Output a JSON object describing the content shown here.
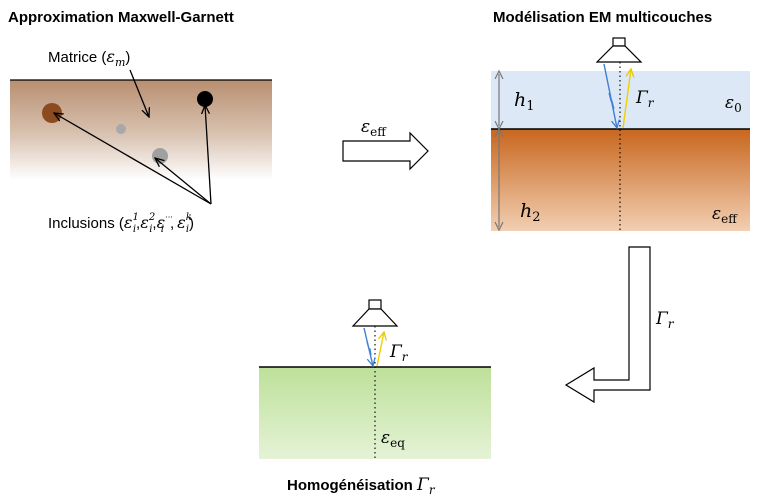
{
  "panels": {
    "maxwell_garnett": {
      "title": "Approximation Maxwell-Garnett",
      "matrix_label": "Matrice (",
      "matrix_symbol": "ε",
      "matrix_subscript": "m",
      "matrix_close": ")",
      "inclusions_label": "Inclusions (",
      "inclusion_symbol": "ε",
      "inclusion_subscript": "i",
      "inclusion_sup_1": "1",
      "inclusion_sup_2": "2",
      "inclusion_sup_3": "···",
      "inclusion_sup_k": "k",
      "comma": ",",
      "inclusions_close": ")"
    },
    "multilayer": {
      "title": "Modélisation EM multicouches",
      "h1": "h",
      "h1_sub": "1",
      "h2": "h",
      "h2_sub": "2",
      "eps0": "ε",
      "eps0_sub": "0",
      "eps_eff": "ε",
      "eps_eff_sub": "eff",
      "gamma": "Γ",
      "gamma_sub": "r"
    },
    "homogenization": {
      "title": "Homogénéisation ",
      "title_gamma": "Γ",
      "title_gamma_sub": "r",
      "gamma": "Γ",
      "gamma_sub": "r",
      "eps_eq": "ε",
      "eps_eq_sub": "eq"
    }
  },
  "arrows": {
    "right_label": "ε",
    "right_label_sub": "eff",
    "down_label": "Γ",
    "down_label_sub": "r"
  },
  "colors": {
    "matrix_top": "#b88f70",
    "air_layer": "#dce8f6",
    "soil_top": "#c8661e",
    "soil_bottom": "#f0c9a8",
    "ground_green": "#bde09a",
    "incident_ray": "#3f7fd6",
    "reflected_ray": "#f0d000",
    "large_inclusion": "#8b4a20"
  }
}
